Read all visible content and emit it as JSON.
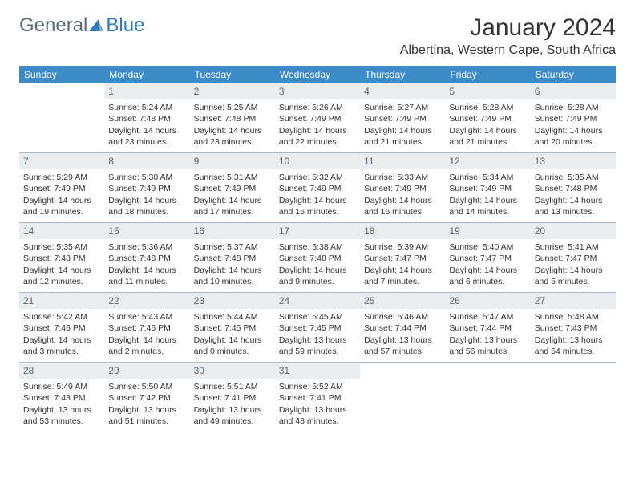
{
  "logo": {
    "general": "General",
    "blue": "Blue"
  },
  "title": "January 2024",
  "location": "Albertina, Western Cape, South Africa",
  "colors": {
    "header_bg": "#3b8bc8",
    "header_text": "#ffffff",
    "daynum_bg": "#e9edf0",
    "daynum_text": "#586470",
    "body_text": "#333333",
    "border": "#aab8c2",
    "logo_general": "#5a6a78",
    "logo_blue": "#2f7bbf"
  },
  "dayNames": [
    "Sunday",
    "Monday",
    "Tuesday",
    "Wednesday",
    "Thursday",
    "Friday",
    "Saturday"
  ],
  "weeks": [
    [
      null,
      {
        "n": "1",
        "sr": "5:24 AM",
        "ss": "7:48 PM",
        "dl": "14 hours and 23 minutes."
      },
      {
        "n": "2",
        "sr": "5:25 AM",
        "ss": "7:48 PM",
        "dl": "14 hours and 23 minutes."
      },
      {
        "n": "3",
        "sr": "5:26 AM",
        "ss": "7:49 PM",
        "dl": "14 hours and 22 minutes."
      },
      {
        "n": "4",
        "sr": "5:27 AM",
        "ss": "7:49 PM",
        "dl": "14 hours and 21 minutes."
      },
      {
        "n": "5",
        "sr": "5:28 AM",
        "ss": "7:49 PM",
        "dl": "14 hours and 21 minutes."
      },
      {
        "n": "6",
        "sr": "5:28 AM",
        "ss": "7:49 PM",
        "dl": "14 hours and 20 minutes."
      }
    ],
    [
      {
        "n": "7",
        "sr": "5:29 AM",
        "ss": "7:49 PM",
        "dl": "14 hours and 19 minutes."
      },
      {
        "n": "8",
        "sr": "5:30 AM",
        "ss": "7:49 PM",
        "dl": "14 hours and 18 minutes."
      },
      {
        "n": "9",
        "sr": "5:31 AM",
        "ss": "7:49 PM",
        "dl": "14 hours and 17 minutes."
      },
      {
        "n": "10",
        "sr": "5:32 AM",
        "ss": "7:49 PM",
        "dl": "14 hours and 16 minutes."
      },
      {
        "n": "11",
        "sr": "5:33 AM",
        "ss": "7:49 PM",
        "dl": "14 hours and 16 minutes."
      },
      {
        "n": "12",
        "sr": "5:34 AM",
        "ss": "7:49 PM",
        "dl": "14 hours and 14 minutes."
      },
      {
        "n": "13",
        "sr": "5:35 AM",
        "ss": "7:48 PM",
        "dl": "14 hours and 13 minutes."
      }
    ],
    [
      {
        "n": "14",
        "sr": "5:35 AM",
        "ss": "7:48 PM",
        "dl": "14 hours and 12 minutes."
      },
      {
        "n": "15",
        "sr": "5:36 AM",
        "ss": "7:48 PM",
        "dl": "14 hours and 11 minutes."
      },
      {
        "n": "16",
        "sr": "5:37 AM",
        "ss": "7:48 PM",
        "dl": "14 hours and 10 minutes."
      },
      {
        "n": "17",
        "sr": "5:38 AM",
        "ss": "7:48 PM",
        "dl": "14 hours and 9 minutes."
      },
      {
        "n": "18",
        "sr": "5:39 AM",
        "ss": "7:47 PM",
        "dl": "14 hours and 7 minutes."
      },
      {
        "n": "19",
        "sr": "5:40 AM",
        "ss": "7:47 PM",
        "dl": "14 hours and 6 minutes."
      },
      {
        "n": "20",
        "sr": "5:41 AM",
        "ss": "7:47 PM",
        "dl": "14 hours and 5 minutes."
      }
    ],
    [
      {
        "n": "21",
        "sr": "5:42 AM",
        "ss": "7:46 PM",
        "dl": "14 hours and 3 minutes."
      },
      {
        "n": "22",
        "sr": "5:43 AM",
        "ss": "7:46 PM",
        "dl": "14 hours and 2 minutes."
      },
      {
        "n": "23",
        "sr": "5:44 AM",
        "ss": "7:45 PM",
        "dl": "14 hours and 0 minutes."
      },
      {
        "n": "24",
        "sr": "5:45 AM",
        "ss": "7:45 PM",
        "dl": "13 hours and 59 minutes."
      },
      {
        "n": "25",
        "sr": "5:46 AM",
        "ss": "7:44 PM",
        "dl": "13 hours and 57 minutes."
      },
      {
        "n": "26",
        "sr": "5:47 AM",
        "ss": "7:44 PM",
        "dl": "13 hours and 56 minutes."
      },
      {
        "n": "27",
        "sr": "5:48 AM",
        "ss": "7:43 PM",
        "dl": "13 hours and 54 minutes."
      }
    ],
    [
      {
        "n": "28",
        "sr": "5:49 AM",
        "ss": "7:43 PM",
        "dl": "13 hours and 53 minutes."
      },
      {
        "n": "29",
        "sr": "5:50 AM",
        "ss": "7:42 PM",
        "dl": "13 hours and 51 minutes."
      },
      {
        "n": "30",
        "sr": "5:51 AM",
        "ss": "7:41 PM",
        "dl": "13 hours and 49 minutes."
      },
      {
        "n": "31",
        "sr": "5:52 AM",
        "ss": "7:41 PM",
        "dl": "13 hours and 48 minutes."
      },
      null,
      null,
      null
    ]
  ],
  "labels": {
    "sunrise": "Sunrise:",
    "sunset": "Sunset:",
    "daylight": "Daylight:"
  }
}
